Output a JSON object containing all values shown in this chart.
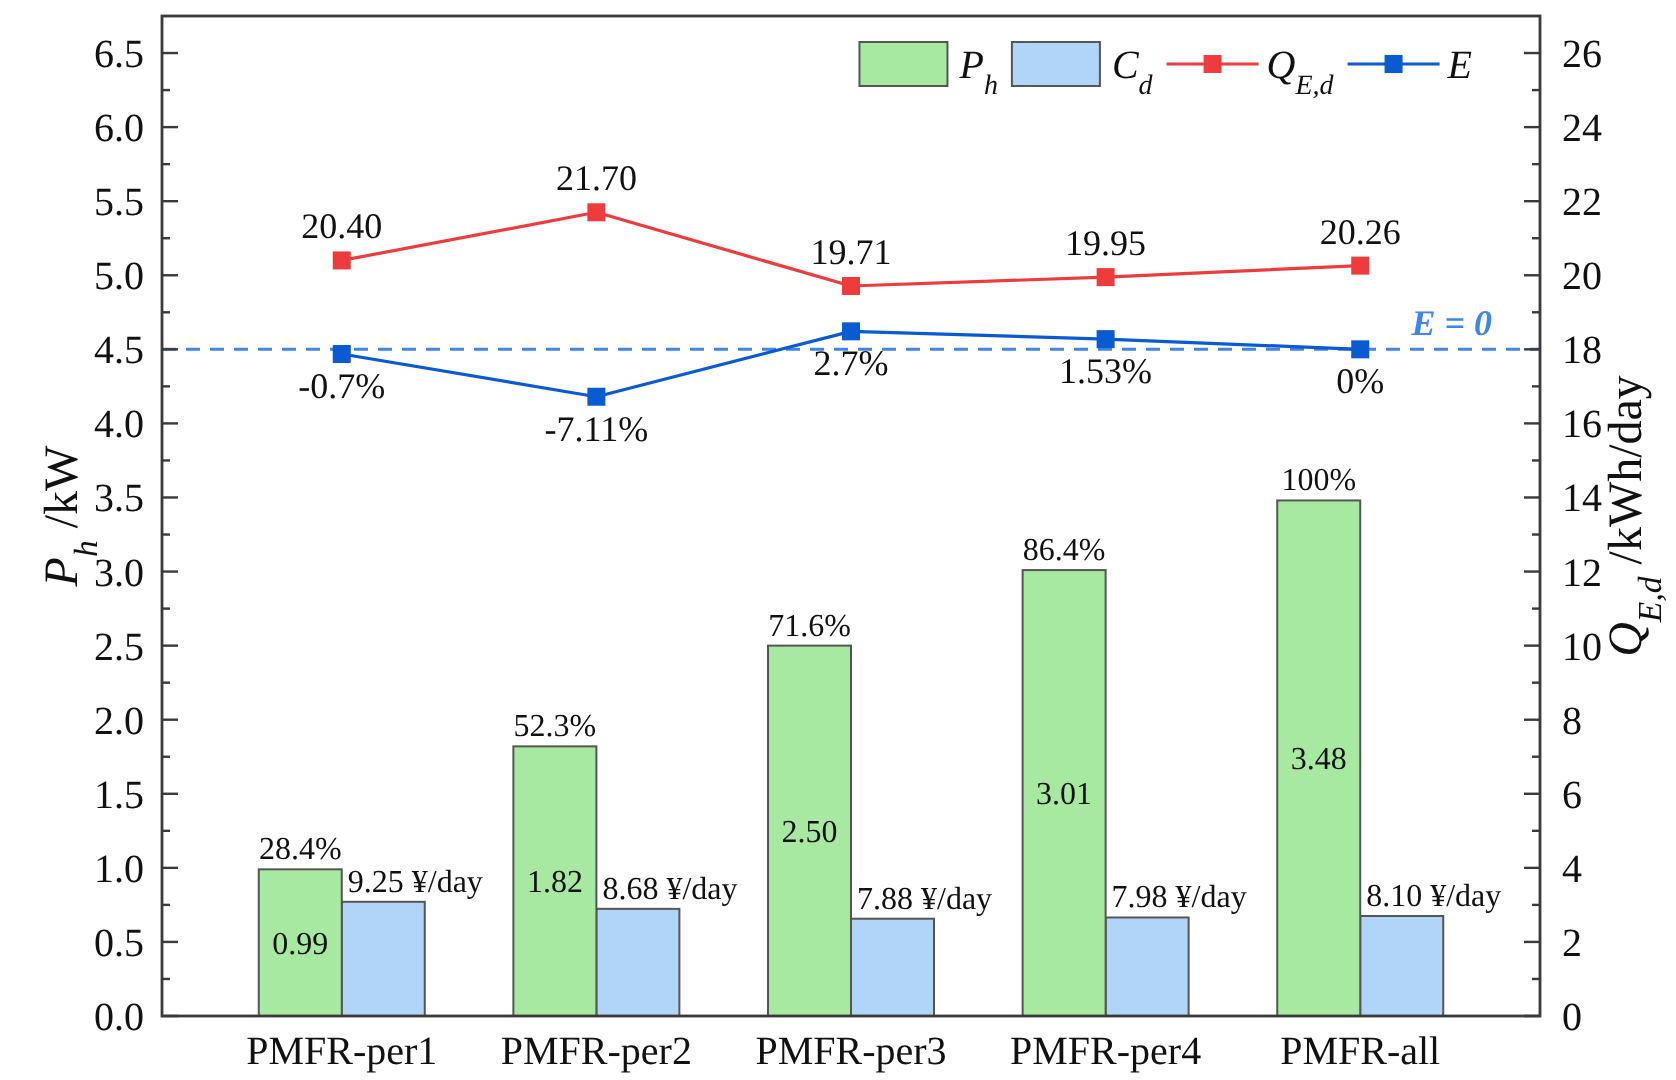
{
  "chart_data": [
    {
      "type": "bar",
      "categories": [
        "PMFR-per1",
        "PMFR-per2",
        "PMFR-per3",
        "PMFR-per4",
        "PMFR-all"
      ],
      "ylabel": "P$_{h}$ /kW",
      "y2label": "Q$_{E,d}$ /kWh/day",
      "ylim": [
        0,
        6.75
      ],
      "yticks": [
        {
          "value": 0,
          "label": "0.0"
        },
        {
          "value": 0.25,
          "label": null
        },
        {
          "value": 0.5,
          "label": "0.5"
        },
        {
          "value": 0.75,
          "label": null
        },
        {
          "value": 1,
          "label": "1.0"
        },
        {
          "value": 1.25,
          "label": null
        },
        {
          "value": 1.5,
          "label": "1.5"
        },
        {
          "value": 1.75,
          "label": null
        },
        {
          "value": 2,
          "label": "2.0"
        },
        {
          "value": 2.25,
          "label": null
        },
        {
          "value": 2.5,
          "label": "2.5"
        },
        {
          "value": 2.75,
          "label": null
        },
        {
          "value": 3,
          "label": "3.0"
        },
        {
          "value": 3.25,
          "label": null
        },
        {
          "value": 3.5,
          "label": "3.5"
        },
        {
          "value": 3.75,
          "label": null
        },
        {
          "value": 4,
          "label": "4.0"
        },
        {
          "value": 4.25,
          "label": null
        },
        {
          "value": 4.5,
          "label": "4.5"
        },
        {
          "value": 4.75,
          "label": null
        },
        {
          "value": 5,
          "label": "5.0"
        },
        {
          "value": 5.25,
          "label": null
        },
        {
          "value": 5.5,
          "label": "5.5"
        },
        {
          "value": 5.75,
          "label": null
        },
        {
          "value": 6,
          "label": "6.0"
        },
        {
          "value": 6.25,
          "label": null
        },
        {
          "value": 6.5,
          "label": "6.5"
        }
      ],
      "y2lim": [
        0,
        27
      ],
      "y2ticks": [
        0,
        {
          "value": 1,
          "label": null
        },
        2,
        {
          "value": 3,
          "label": null
        },
        4,
        {
          "value": 5,
          "label": null
        },
        6,
        {
          "value": 7,
          "label": null
        },
        8,
        {
          "value": 9,
          "label": null
        },
        10,
        {
          "value": 11,
          "label": null
        },
        12,
        {
          "value": 13,
          "label": null
        },
        14,
        {
          "value": 15,
          "label": null
        },
        16,
        {
          "value": 17,
          "label": null
        },
        18,
        {
          "value": 19,
          "label": null
        },
        20,
        {
          "value": 21,
          "label": null
        },
        22,
        {
          "value": 23,
          "label": null
        },
        24,
        {
          "value": 25,
          "label": null
        },
        26
      ],
      "series": [
        {
          "name": "P$_{h}$",
          "color": "#a8e9a2",
          "values": [
            0.99,
            1.82,
            2.5,
            3.01,
            3.48
          ],
          "value_labels": [
            "0.99",
            "1.82",
            "2.50",
            "3.01",
            "3.48"
          ]
        },
        {
          "name": "Q$_{E,d}$",
          "type": "line",
          "axis": "y2",
          "color": "#ee3c3c",
          "values": [
            20.4,
            21.7,
            19.71,
            19.95,
            20.26
          ],
          "value_labels": [
            "20.40",
            "21.70",
            "19.71",
            "19.95",
            "20.26"
          ]
        }
      ],
      "marker": "square",
      "legend": "top right",
      "annotations": [
        {
          "text": "28.4%",
          "x": "PMFR-per1",
          "y": 0.99
        },
        {
          "text": "52.3%",
          "x": "PMFR-per2",
          "y": 1.82
        },
        {
          "text": "71.6%",
          "x": "PMFR-per3",
          "y": 2.5
        },
        {
          "text": "86.4%",
          "x": "PMFR-per4",
          "y": 3.01
        },
        {
          "text": "100%",
          "x": "PMFR-all",
          "y": 3.48
        }
      ]
    },
    {
      "type": "line",
      "categories": [
        "PMFR-per1",
        "PMFR-per2",
        "PMFR-per3",
        "PMFR-per4",
        "PMFR-all"
      ],
      "ylim": [
        -100,
        50
      ],
      "y2lim": [
        0,
        81
      ],
      "tick_labels": false,
      "series": [
        {
          "name": "C$_{d}$",
          "type": "bar",
          "axis": "y2",
          "color": "#b1d5f9",
          "values": [
            9.25,
            8.68,
            7.88,
            7.98,
            8.1
          ],
          "value_labels": [
            "9.25 ¥/day",
            "8.68 ¥/day",
            "7.88 ¥/day",
            "7.98 ¥/day",
            "8.10 ¥/day"
          ]
        },
        {
          "name": "E",
          "color": "#0a5ad2",
          "values": [
            -0.7,
            -7.11,
            2.7,
            1.53,
            0
          ],
          "value_labels": [
            "-0.7%",
            "-7.11%",
            "2.7%",
            "1.53%",
            "0%"
          ]
        }
      ],
      "marker": "square",
      "legend": "top right",
      "ref_lines": [
        {
          "axis": "y",
          "value": 0,
          "label": "E = 0",
          "color": "#3f86e8",
          "line_style": "dashed"
        }
      ]
    }
  ]
}
